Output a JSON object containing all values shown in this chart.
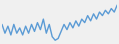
{
  "values": [
    55,
    30,
    50,
    25,
    55,
    30,
    45,
    25,
    50,
    30,
    55,
    35,
    60,
    40,
    70,
    30,
    55,
    20,
    10,
    15,
    35,
    55,
    40,
    60,
    45,
    65,
    50,
    70,
    60,
    80,
    65,
    85,
    70,
    90,
    80,
    95,
    85,
    100,
    90,
    110
  ],
  "line_color": "#5b9bd5",
  "background_color": "#f0f0f0",
  "linewidth": 1.0
}
